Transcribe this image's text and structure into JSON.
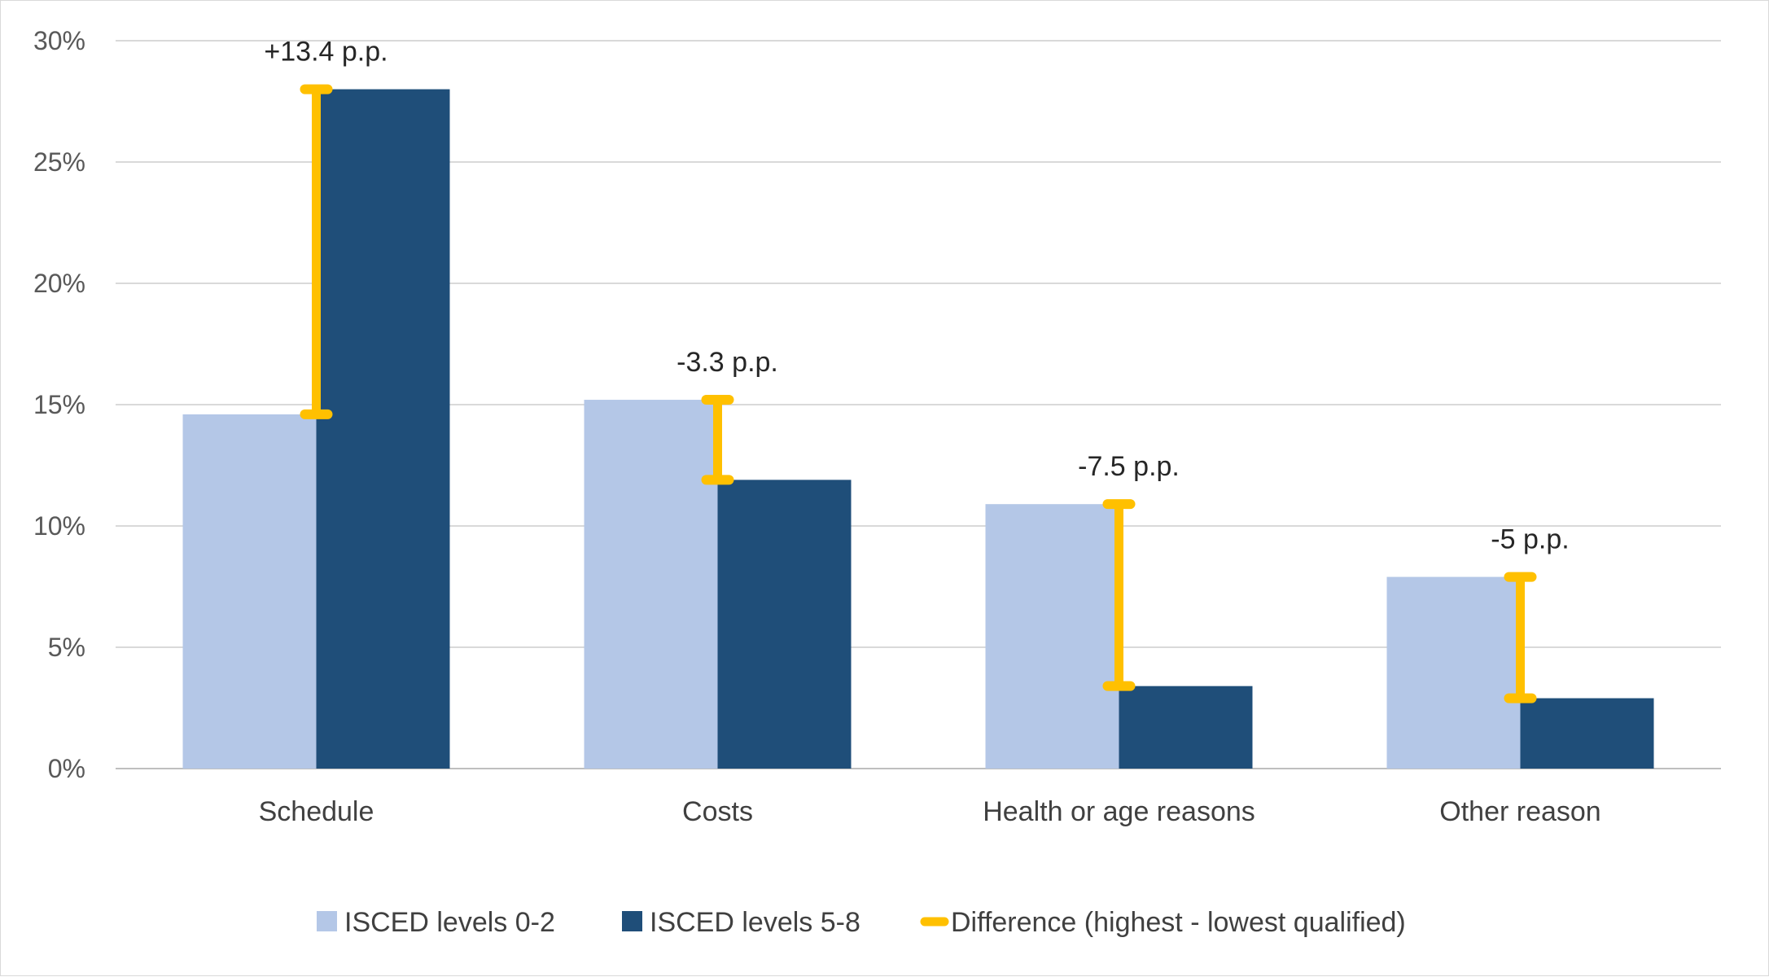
{
  "chart_data": {
    "type": "bar",
    "categories": [
      "Schedule",
      "Costs",
      "Health or age reasons",
      "Other reason"
    ],
    "series": [
      {
        "name": "ISCED levels 0-2",
        "values": [
          14.6,
          15.2,
          10.9,
          7.9
        ],
        "color": "#b4c7e7"
      },
      {
        "name": "ISCED levels 5-8",
        "values": [
          28.0,
          11.9,
          3.4,
          2.9
        ],
        "color": "#1f4e79"
      }
    ],
    "difference": {
      "name": "Difference (highest - lowest qualified)",
      "color": "#ffc000",
      "labels": [
        "+13.4 p.p.",
        "-3.3 p.p.",
        "-7.5 p.p.",
        "-5 p.p."
      ]
    },
    "yaxis": {
      "ylim": [
        0,
        30
      ],
      "ticks": [
        0,
        5,
        10,
        15,
        20,
        25,
        30
      ],
      "tick_labels": [
        "0%",
        "5%",
        "10%",
        "15%",
        "20%",
        "25%",
        "30%"
      ]
    },
    "grid": true,
    "legend": "bottom"
  }
}
